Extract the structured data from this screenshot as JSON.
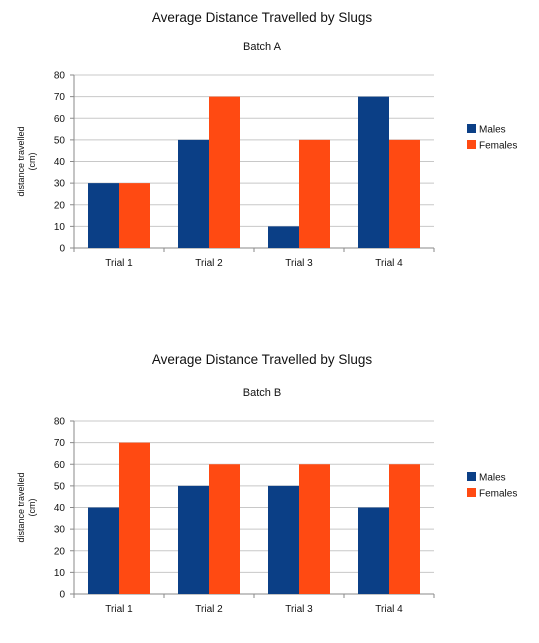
{
  "chart_data": [
    {
      "type": "bar",
      "title": "Average Distance Travelled by Slugs",
      "subtitle": "Batch A",
      "ylabel": "distance travelled (cm)",
      "xlabel": "",
      "ylim": [
        0,
        80
      ],
      "yticks": [
        0,
        10,
        20,
        30,
        40,
        50,
        60,
        70,
        80
      ],
      "grid": true,
      "legend_position": "right",
      "categories": [
        "Trial 1",
        "Trial 2",
        "Trial 3",
        "Trial 4"
      ],
      "series": [
        {
          "name": "Males",
          "color": "#0b3f86",
          "values": [
            30,
            50,
            10,
            70
          ]
        },
        {
          "name": "Females",
          "color": "#ff4a12",
          "values": [
            30,
            70,
            50,
            50
          ]
        }
      ]
    },
    {
      "type": "bar",
      "title": "Average Distance Travelled by Slugs",
      "subtitle": "Batch B",
      "ylabel": "distance travelled (cm)",
      "xlabel": "",
      "ylim": [
        0,
        80
      ],
      "yticks": [
        0,
        10,
        20,
        30,
        40,
        50,
        60,
        70,
        80
      ],
      "grid": true,
      "legend_position": "right",
      "categories": [
        "Trial 1",
        "Trial 2",
        "Trial 3",
        "Trial 4"
      ],
      "series": [
        {
          "name": "Males",
          "color": "#0b3f86",
          "values": [
            40,
            50,
            50,
            40
          ]
        },
        {
          "name": "Females",
          "color": "#ff4a12",
          "values": [
            70,
            60,
            60,
            60
          ]
        }
      ]
    }
  ]
}
